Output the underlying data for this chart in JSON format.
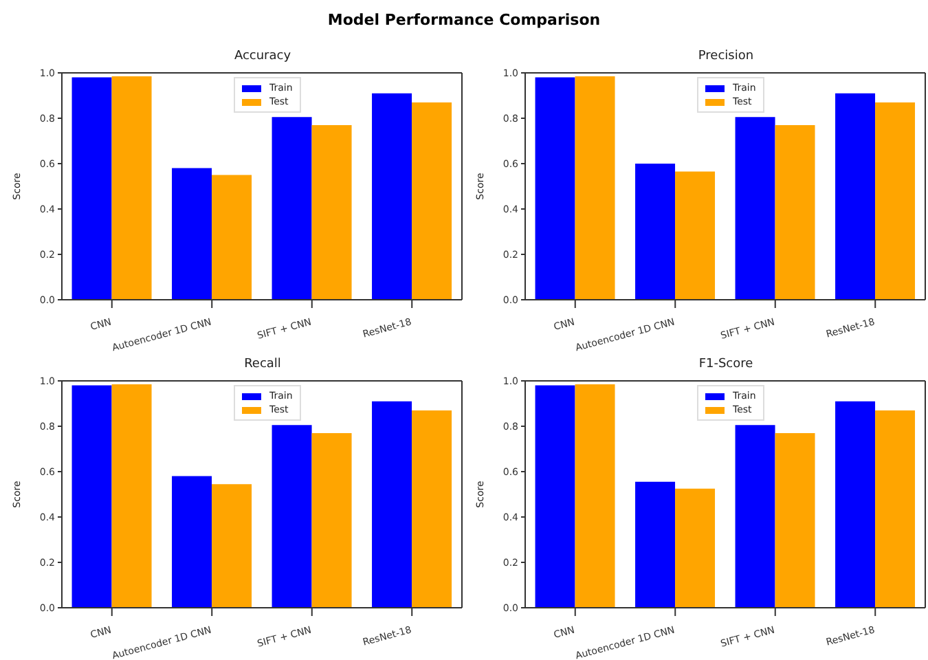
{
  "chart_data": [
    {
      "type": "bar",
      "annotations": [
        "Model Performance Comparison"
      ],
      "title": "Accuracy",
      "ylabel": "Score",
      "categories": [
        "CNN",
        "Autoencoder 1D CNN",
        "SIFT + CNN",
        "ResNet-18"
      ],
      "series": [
        {
          "name": "Train",
          "color": "#0000ff",
          "values": [
            0.98,
            0.58,
            0.805,
            0.91
          ]
        },
        {
          "name": "Test",
          "color": "#ffa500",
          "values": [
            0.985,
            0.55,
            0.77,
            0.87
          ]
        }
      ],
      "ylim": [
        0,
        1
      ],
      "yticks": [
        {
          "value": 0,
          "label": "0.0"
        },
        {
          "value": 0.2,
          "label": "0.2"
        },
        {
          "value": 0.4,
          "label": "0.4"
        },
        {
          "value": 0.6,
          "label": "0.6"
        },
        {
          "value": 0.8,
          "label": "0.8"
        },
        {
          "value": 1,
          "label": "1.0"
        }
      ],
      "legend": "top"
    },
    {
      "type": "bar",
      "title": "Precision",
      "ylabel": "Score",
      "categories": [
        "CNN",
        "Autoencoder 1D CNN",
        "SIFT + CNN",
        "ResNet-18"
      ],
      "series": [
        {
          "name": "Train",
          "color": "#0000ff",
          "values": [
            0.98,
            0.6,
            0.805,
            0.91
          ]
        },
        {
          "name": "Test",
          "color": "#ffa500",
          "values": [
            0.985,
            0.565,
            0.77,
            0.87
          ]
        }
      ],
      "ylim": [
        0,
        1
      ],
      "yticks": [
        {
          "value": 0,
          "label": "0.0"
        },
        {
          "value": 0.2,
          "label": "0.2"
        },
        {
          "value": 0.4,
          "label": "0.4"
        },
        {
          "value": 0.6,
          "label": "0.6"
        },
        {
          "value": 0.8,
          "label": "0.8"
        },
        {
          "value": 1,
          "label": "1.0"
        }
      ],
      "legend": "top"
    },
    {
      "type": "bar",
      "title": "Recall",
      "ylabel": "Score",
      "categories": [
        "CNN",
        "Autoencoder 1D CNN",
        "SIFT + CNN",
        "ResNet-18"
      ],
      "series": [
        {
          "name": "Train",
          "color": "#0000ff",
          "values": [
            0.98,
            0.58,
            0.805,
            0.91
          ]
        },
        {
          "name": "Test",
          "color": "#ffa500",
          "values": [
            0.985,
            0.545,
            0.77,
            0.87
          ]
        }
      ],
      "ylim": [
        0,
        1
      ],
      "yticks": [
        {
          "value": 0,
          "label": "0.0"
        },
        {
          "value": 0.2,
          "label": "0.2"
        },
        {
          "value": 0.4,
          "label": "0.4"
        },
        {
          "value": 0.6,
          "label": "0.6"
        },
        {
          "value": 0.8,
          "label": "0.8"
        },
        {
          "value": 1,
          "label": "1.0"
        }
      ],
      "legend": "top"
    },
    {
      "type": "bar",
      "title": "F1-Score",
      "ylabel": "Score",
      "categories": [
        "CNN",
        "Autoencoder 1D CNN",
        "SIFT + CNN",
        "ResNet-18"
      ],
      "series": [
        {
          "name": "Train",
          "color": "#0000ff",
          "values": [
            0.98,
            0.555,
            0.805,
            0.91
          ]
        },
        {
          "name": "Test",
          "color": "#ffa500",
          "values": [
            0.985,
            0.525,
            0.77,
            0.87
          ]
        }
      ],
      "ylim": [
        0,
        1
      ],
      "yticks": [
        {
          "value": 0,
          "label": "0.0"
        },
        {
          "value": 0.2,
          "label": "0.2"
        },
        {
          "value": 0.4,
          "label": "0.4"
        },
        {
          "value": 0.6,
          "label": "0.6"
        },
        {
          "value": 0.8,
          "label": "0.8"
        },
        {
          "value": 1,
          "label": "1.0"
        }
      ],
      "legend": "top"
    }
  ]
}
